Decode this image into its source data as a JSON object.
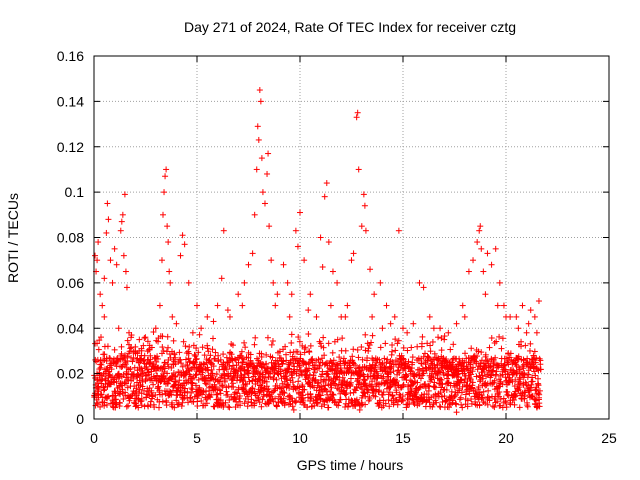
{
  "chart_data": {
    "type": "scatter",
    "title": "Day 271 of 2024, Rate Of TEC Index for receiver cztg",
    "xlabel": "GPS time / hours",
    "ylabel": "ROTI / TECUs",
    "xlim": [
      0,
      25
    ],
    "ylim": [
      0,
      0.16
    ],
    "x_ticks": [
      0,
      5,
      10,
      15,
      20,
      25
    ],
    "x_tick_labels": [
      "0",
      "5",
      "10",
      "15",
      "20",
      "25"
    ],
    "y_ticks": [
      0,
      0.02,
      0.04,
      0.06,
      0.08,
      0.1,
      0.12,
      0.14,
      0.16
    ],
    "y_tick_labels": [
      "0",
      "0.02",
      "0.04",
      "0.06",
      "0.08",
      "0.1",
      "0.12",
      "0.14",
      "0.16"
    ],
    "grid": true,
    "marker": "+",
    "marker_color": "#ff0000",
    "series": [
      {
        "name": "ROTI",
        "points": [
          [
            0.05,
            0.072
          ],
          [
            0.1,
            0.065
          ],
          [
            0.15,
            0.07
          ],
          [
            0.2,
            0.078
          ],
          [
            0.3,
            0.055
          ],
          [
            0.4,
            0.05
          ],
          [
            0.5,
            0.062
          ],
          [
            0.6,
            0.082
          ],
          [
            0.65,
            0.095
          ],
          [
            0.7,
            0.088
          ],
          [
            0.8,
            0.07
          ],
          [
            0.9,
            0.06
          ],
          [
            1.0,
            0.075
          ],
          [
            1.1,
            0.068
          ],
          [
            1.3,
            0.083
          ],
          [
            1.35,
            0.087
          ],
          [
            1.4,
            0.09
          ],
          [
            1.45,
            0.072
          ],
          [
            1.5,
            0.099
          ],
          [
            1.55,
            0.065
          ],
          [
            1.6,
            0.058
          ],
          [
            1.7,
            0.038
          ],
          [
            1.8,
            0.036
          ],
          [
            2.0,
            0.03
          ],
          [
            2.3,
            0.028
          ],
          [
            2.6,
            0.026
          ],
          [
            2.9,
            0.022
          ],
          [
            3.2,
            0.05
          ],
          [
            3.3,
            0.07
          ],
          [
            3.35,
            0.09
          ],
          [
            3.4,
            0.1
          ],
          [
            3.45,
            0.107
          ],
          [
            3.5,
            0.11
          ],
          [
            3.55,
            0.085
          ],
          [
            3.6,
            0.078
          ],
          [
            3.65,
            0.065
          ],
          [
            3.7,
            0.06
          ],
          [
            3.8,
            0.045
          ],
          [
            4.2,
            0.072
          ],
          [
            4.3,
            0.081
          ],
          [
            4.4,
            0.077
          ],
          [
            4.6,
            0.06
          ],
          [
            5.0,
            0.05
          ],
          [
            5.5,
            0.045
          ],
          [
            6.0,
            0.05
          ],
          [
            6.2,
            0.062
          ],
          [
            6.3,
            0.083
          ],
          [
            6.5,
            0.048
          ],
          [
            7.0,
            0.055
          ],
          [
            7.3,
            0.06
          ],
          [
            7.5,
            0.068
          ],
          [
            7.7,
            0.073
          ],
          [
            7.8,
            0.09
          ],
          [
            7.9,
            0.11
          ],
          [
            7.95,
            0.129
          ],
          [
            8.0,
            0.123
          ],
          [
            8.05,
            0.145
          ],
          [
            8.1,
            0.14
          ],
          [
            8.15,
            0.115
          ],
          [
            8.2,
            0.1
          ],
          [
            8.3,
            0.095
          ],
          [
            8.4,
            0.108
          ],
          [
            8.45,
            0.117
          ],
          [
            8.5,
            0.085
          ],
          [
            8.6,
            0.07
          ],
          [
            8.7,
            0.06
          ],
          [
            8.9,
            0.055
          ],
          [
            9.2,
            0.068
          ],
          [
            9.4,
            0.06
          ],
          [
            9.6,
            0.055
          ],
          [
            9.8,
            0.083
          ],
          [
            9.9,
            0.076
          ],
          [
            10.0,
            0.091
          ],
          [
            10.2,
            0.07
          ],
          [
            10.5,
            0.055
          ],
          [
            10.8,
            0.045
          ],
          [
            11.0,
            0.08
          ],
          [
            11.1,
            0.067
          ],
          [
            11.2,
            0.098
          ],
          [
            11.3,
            0.104
          ],
          [
            11.4,
            0.078
          ],
          [
            11.6,
            0.065
          ],
          [
            11.8,
            0.06
          ],
          [
            12.0,
            0.045
          ],
          [
            12.3,
            0.05
          ],
          [
            12.5,
            0.07
          ],
          [
            12.6,
            0.073
          ],
          [
            12.75,
            0.133
          ],
          [
            12.8,
            0.135
          ],
          [
            12.85,
            0.11
          ],
          [
            13.0,
            0.085
          ],
          [
            13.1,
            0.099
          ],
          [
            13.15,
            0.094
          ],
          [
            13.2,
            0.083
          ],
          [
            13.4,
            0.066
          ],
          [
            13.6,
            0.055
          ],
          [
            13.9,
            0.06
          ],
          [
            14.2,
            0.05
          ],
          [
            14.6,
            0.045
          ],
          [
            14.8,
            0.083
          ],
          [
            15.0,
            0.04
          ],
          [
            15.5,
            0.042
          ],
          [
            15.8,
            0.06
          ],
          [
            16.0,
            0.058
          ],
          [
            16.3,
            0.045
          ],
          [
            16.8,
            0.04
          ],
          [
            17.2,
            0.038
          ],
          [
            17.6,
            0.042
          ],
          [
            17.9,
            0.05
          ],
          [
            18.2,
            0.065
          ],
          [
            18.4,
            0.07
          ],
          [
            18.6,
            0.078
          ],
          [
            18.7,
            0.083
          ],
          [
            18.75,
            0.085
          ],
          [
            18.8,
            0.075
          ],
          [
            18.9,
            0.065
          ],
          [
            19.1,
            0.073
          ],
          [
            19.3,
            0.068
          ],
          [
            19.5,
            0.075
          ],
          [
            19.7,
            0.06
          ],
          [
            19.9,
            0.05
          ],
          [
            20.2,
            0.045
          ],
          [
            20.5,
            0.045
          ],
          [
            20.8,
            0.05
          ],
          [
            21.0,
            0.038
          ],
          [
            21.2,
            0.048
          ],
          [
            21.4,
            0.045
          ],
          [
            21.6,
            0.052
          ],
          [
            0.5,
            0.045
          ],
          [
            1.2,
            0.04
          ],
          [
            2.2,
            0.035
          ],
          [
            3.0,
            0.04
          ],
          [
            4.0,
            0.042
          ],
          [
            4.8,
            0.038
          ],
          [
            5.2,
            0.04
          ],
          [
            5.8,
            0.043
          ],
          [
            6.6,
            0.045
          ],
          [
            7.2,
            0.05
          ],
          [
            8.8,
            0.05
          ],
          [
            9.5,
            0.045
          ],
          [
            10.4,
            0.048
          ],
          [
            11.5,
            0.05
          ],
          [
            12.2,
            0.045
          ],
          [
            13.5,
            0.045
          ],
          [
            14.0,
            0.04
          ],
          [
            14.4,
            0.042
          ],
          [
            15.2,
            0.038
          ],
          [
            16.5,
            0.04
          ],
          [
            17.0,
            0.035
          ],
          [
            18.0,
            0.045
          ],
          [
            19.0,
            0.055
          ],
          [
            19.6,
            0.05
          ],
          [
            20.0,
            0.045
          ],
          [
            20.6,
            0.04
          ],
          [
            21.1,
            0.042
          ],
          [
            21.5,
            0.038
          ],
          [
            17.6,
            0.003
          ],
          [
            9.7,
            0.004
          ],
          [
            12.9,
            0.004
          ],
          [
            3.9,
            0.005
          ]
        ],
        "band_note": "dense background of points between 0.005 and 0.035 across 0 to 21.7 hours"
      }
    ]
  }
}
